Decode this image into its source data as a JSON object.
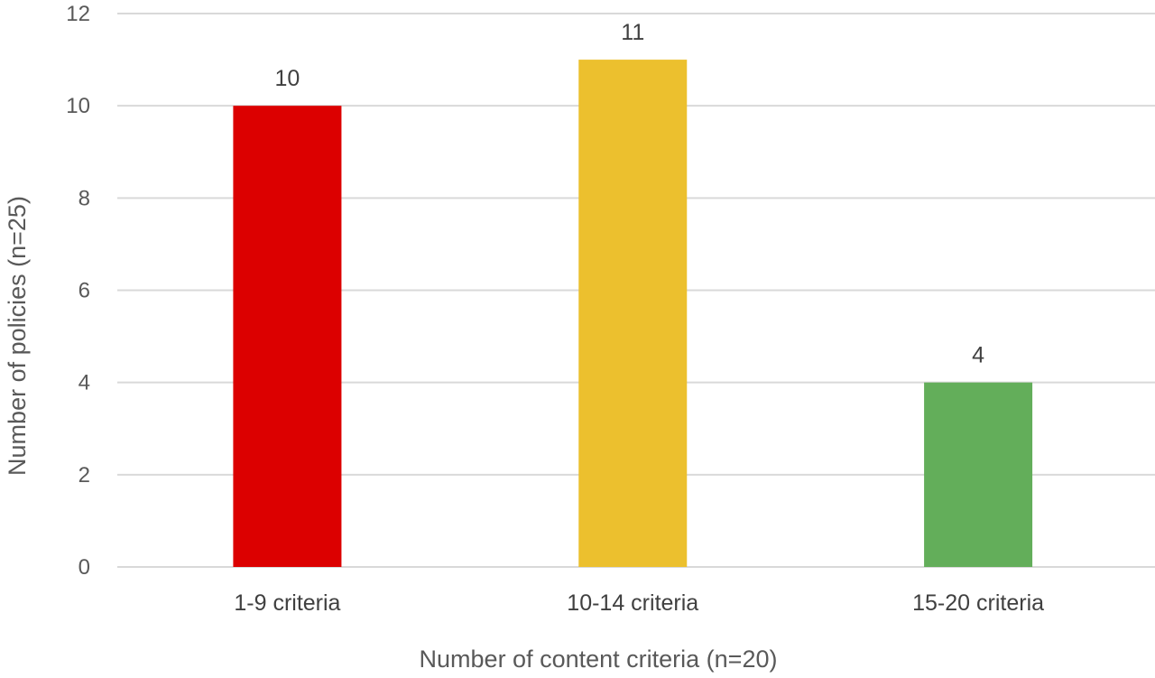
{
  "chart_data": {
    "type": "bar",
    "categories": [
      "1-9 criteria",
      "10-14 criteria",
      "15-20 criteria"
    ],
    "values": [
      10,
      11,
      4
    ],
    "data_labels": [
      "10",
      "11",
      "4"
    ],
    "bar_colors": [
      "#dc0000",
      "#ecc02e",
      "#63ae5a"
    ],
    "title": "",
    "xlabel": "Number of content criteria (n=20)",
    "ylabel": "Number of policies (n=25)",
    "ylim": [
      0,
      12
    ],
    "yticks": [
      0,
      2,
      4,
      6,
      8,
      10,
      12
    ],
    "grid": true,
    "legend": "none"
  }
}
